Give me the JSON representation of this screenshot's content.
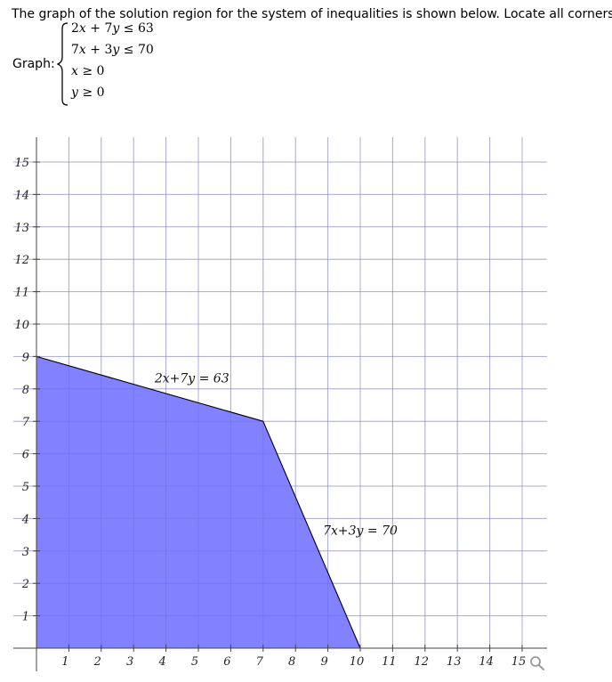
{
  "prompt": "The graph of the solution region for the system of inequalities is shown below. Locate all corners.",
  "graph_label": "Graph:",
  "system": [
    {
      "lhs_a": "2",
      "var_a": "x",
      "op": "+",
      "lhs_b": "7",
      "var_b": "y",
      "rel": "≤",
      "rhs": "63"
    },
    {
      "lhs_a": "7",
      "var_a": "x",
      "op": "+",
      "lhs_b": "3",
      "var_b": "y",
      "rel": "≤",
      "rhs": "70"
    },
    {
      "var": "x",
      "rel": "≥",
      "rhs": "0"
    },
    {
      "var": "y",
      "rel": "≥",
      "rhs": "0"
    }
  ],
  "chart_data": {
    "type": "area",
    "xlim": [
      0,
      15
    ],
    "ylim": [
      0,
      15
    ],
    "x_ticks": [
      "1",
      "2",
      "3",
      "4",
      "5",
      "6",
      "7",
      "8",
      "9",
      "10",
      "11",
      "12",
      "13",
      "14",
      "15"
    ],
    "y_ticks": [
      "1",
      "2",
      "3",
      "4",
      "5",
      "6",
      "7",
      "8",
      "9",
      "10",
      "11",
      "12",
      "13",
      "14",
      "15"
    ],
    "grid": true,
    "region": [
      [
        0,
        0
      ],
      [
        0,
        9
      ],
      [
        7,
        7
      ],
      [
        10,
        0
      ]
    ],
    "fill_color": "#7b7bff",
    "lines": [
      {
        "label": "2x+7y = 63",
        "points": [
          [
            0,
            9
          ],
          [
            7,
            7
          ]
        ]
      },
      {
        "label": "7x+3y = 70",
        "points": [
          [
            7,
            7
          ],
          [
            10,
            0
          ]
        ]
      }
    ],
    "annotations": [
      {
        "text": "2x+7y = 63",
        "at": [
          4.8,
          8.2
        ]
      },
      {
        "text": "7x+3y = 70",
        "at": [
          10.0,
          3.5
        ]
      }
    ]
  },
  "icons": {
    "zoom": "magnifier-icon"
  }
}
